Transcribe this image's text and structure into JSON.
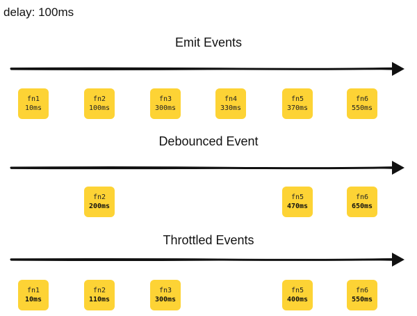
{
  "delay_label": "delay: 100ms",
  "colors": {
    "box": "#fdd335",
    "arrow": "#111111"
  },
  "sections": [
    {
      "title": "Emit Events",
      "events": [
        {
          "name": "fn1",
          "time": "10ms"
        },
        {
          "name": "fn2",
          "time": "100ms"
        },
        {
          "name": "fn3",
          "time": "300ms"
        },
        {
          "name": "fn4",
          "time": "330ms"
        },
        {
          "name": "fn5",
          "time": "370ms"
        },
        {
          "name": "fn6",
          "time": "550ms"
        }
      ]
    },
    {
      "title": "Debounced Event",
      "events": [
        {
          "name": "fn2",
          "time": "200ms"
        },
        {
          "name": "fn5",
          "time": "470ms"
        },
        {
          "name": "fn6",
          "time": "650ms"
        }
      ]
    },
    {
      "title": "Throttled Events",
      "events": [
        {
          "name": "fn1",
          "time": "10ms"
        },
        {
          "name": "fn2",
          "time": "110ms"
        },
        {
          "name": "fn3",
          "time": "300ms"
        },
        {
          "name": "fn5",
          "time": "400ms"
        },
        {
          "name": "fn6",
          "time": "550ms"
        }
      ]
    }
  ]
}
